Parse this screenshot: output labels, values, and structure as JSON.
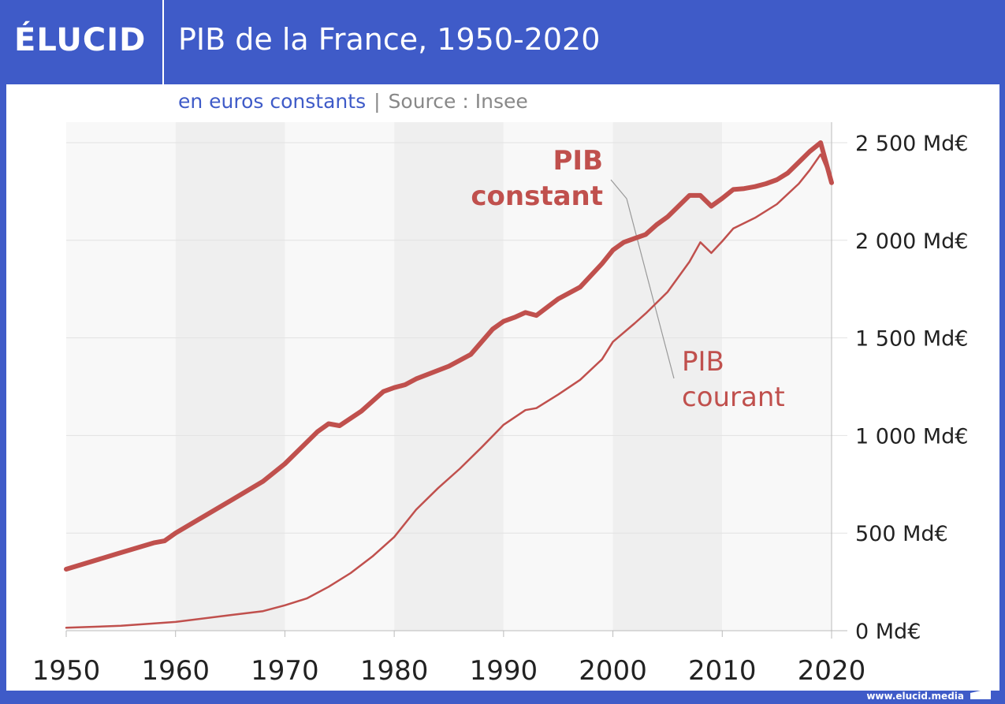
{
  "header": {
    "logo": "ÉLUCID",
    "title": "PIB de la France, 1950-2020"
  },
  "subtitle": {
    "unit": "en euros constants",
    "separator": "|",
    "source": "Source : Insee"
  },
  "footer": {
    "url": "www.elucid.media"
  },
  "colors": {
    "frame": "#3f5bc8",
    "series": "#c0504d",
    "band_dark": "#efefef",
    "band_light": "#f8f8f8"
  },
  "chart_data": {
    "type": "line",
    "title": "PIB de la France, 1950-2020",
    "xlim": [
      1950,
      2020
    ],
    "ylim": [
      0,
      2500
    ],
    "x_ticks": [
      "1950",
      "1960",
      "1970",
      "1980",
      "1990",
      "2000",
      "2010",
      "2020"
    ],
    "y_ticks": [
      "0 Md€",
      "500 Md€",
      "1 000 Md€",
      "1 500 Md€",
      "2 000 Md€",
      "2 500 Md€"
    ],
    "y_tick_values": [
      0,
      500,
      1000,
      1500,
      2000,
      2500
    ],
    "y_axis_side": "right",
    "grid": true,
    "series": [
      {
        "name": "PIB constant",
        "label_lines": [
          "PIB",
          "constant"
        ],
        "style": "thick",
        "points": [
          [
            1950,
            315
          ],
          [
            1955,
            400
          ],
          [
            1958,
            450
          ],
          [
            1959,
            460
          ],
          [
            1960,
            500
          ],
          [
            1965,
            665
          ],
          [
            1968,
            765
          ],
          [
            1970,
            855
          ],
          [
            1973,
            1020
          ],
          [
            1974,
            1060
          ],
          [
            1975,
            1050
          ],
          [
            1977,
            1125
          ],
          [
            1979,
            1225
          ],
          [
            1980,
            1245
          ],
          [
            1981,
            1260
          ],
          [
            1982,
            1290
          ],
          [
            1985,
            1355
          ],
          [
            1987,
            1415
          ],
          [
            1989,
            1545
          ],
          [
            1990,
            1585
          ],
          [
            1991,
            1605
          ],
          [
            1992,
            1630
          ],
          [
            1993,
            1615
          ],
          [
            1995,
            1700
          ],
          [
            1997,
            1760
          ],
          [
            1999,
            1880
          ],
          [
            2000,
            1950
          ],
          [
            2001,
            1990
          ],
          [
            2002,
            2010
          ],
          [
            2003,
            2030
          ],
          [
            2004,
            2080
          ],
          [
            2005,
            2120
          ],
          [
            2006,
            2175
          ],
          [
            2007,
            2230
          ],
          [
            2008,
            2230
          ],
          [
            2009,
            2175
          ],
          [
            2010,
            2215
          ],
          [
            2011,
            2260
          ],
          [
            2012,
            2265
          ],
          [
            2013,
            2275
          ],
          [
            2014,
            2290
          ],
          [
            2015,
            2310
          ],
          [
            2016,
            2345
          ],
          [
            2017,
            2400
          ],
          [
            2018,
            2455
          ],
          [
            2019,
            2500
          ],
          [
            2020,
            2295
          ]
        ]
      },
      {
        "name": "PIB courant",
        "label_lines": [
          "PIB",
          "courant"
        ],
        "style": "thin",
        "points": [
          [
            1950,
            15
          ],
          [
            1955,
            25
          ],
          [
            1960,
            45
          ],
          [
            1965,
            80
          ],
          [
            1968,
            100
          ],
          [
            1970,
            130
          ],
          [
            1972,
            165
          ],
          [
            1974,
            225
          ],
          [
            1976,
            295
          ],
          [
            1978,
            380
          ],
          [
            1980,
            480
          ],
          [
            1982,
            620
          ],
          [
            1984,
            730
          ],
          [
            1986,
            830
          ],
          [
            1988,
            940
          ],
          [
            1990,
            1055
          ],
          [
            1992,
            1130
          ],
          [
            1993,
            1140
          ],
          [
            1995,
            1210
          ],
          [
            1997,
            1285
          ],
          [
            1999,
            1390
          ],
          [
            2000,
            1480
          ],
          [
            2002,
            1575
          ],
          [
            2003,
            1625
          ],
          [
            2005,
            1735
          ],
          [
            2007,
            1890
          ],
          [
            2008,
            1990
          ],
          [
            2009,
            1935
          ],
          [
            2010,
            1995
          ],
          [
            2011,
            2060
          ],
          [
            2013,
            2115
          ],
          [
            2015,
            2185
          ],
          [
            2017,
            2290
          ],
          [
            2018,
            2360
          ],
          [
            2019,
            2440
          ],
          [
            2020,
            2305
          ]
        ]
      }
    ]
  }
}
